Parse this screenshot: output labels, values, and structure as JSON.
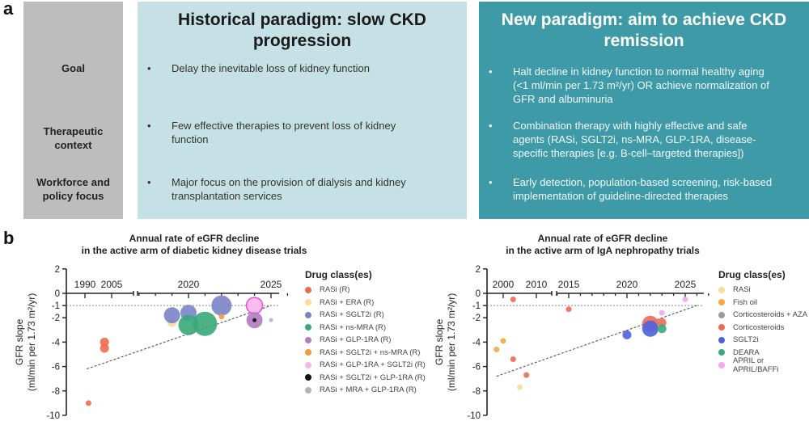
{
  "panel_a": {
    "letter": "a",
    "row_labels": {
      "goal": "Goal",
      "therapeutic_1": "Therapeutic",
      "therapeutic_2": "context",
      "workforce_1": "Workforce and",
      "workforce_2": "policy focus"
    },
    "historical": {
      "title_1": "Historical paradigm:  slow CKD",
      "title_2": "progression",
      "goal_1": "Delay the inevitable loss of kidney function",
      "therapeutic_1": "Few effective therapies to prevent loss of kidney",
      "therapeutic_2": "function",
      "workforce_1": "Major focus on the provision of dialysis and kidney",
      "workforce_2": "transplantation services"
    },
    "new": {
      "title_1": "New paradigm:  aim to achieve CKD",
      "title_2": "remission",
      "goal_1": "Halt decline in kidney function to normal healthy aging",
      "goal_2": "(<1 ml/min per 1.73 m²/yr) OR achieve normalization  of",
      "goal_3": "GFR and albuminuria",
      "therapeutic_1": "Combination therapy with highly effective and safe",
      "therapeutic_2": "agents (RASi, SGLT2i, ns-MRA, GLP-1RA, disease-",
      "therapeutic_3": "specific therapies [e.g. B-cell–targeted therapies])",
      "workforce_1": "Early detection, population-based screening, risk-based",
      "workforce_2": "implementation of guideline-directed therapies"
    },
    "bullet": "•"
  },
  "panel_b": {
    "letter": "b"
  },
  "chart_data": [
    {
      "type": "scatter",
      "title": "Annual rate of eGFR decline",
      "subtitle": "in the active arm of diabetic kidney disease trials",
      "xlabel": "",
      "ylabel_1": "GFR slope",
      "ylabel_2": "(ml/min per 1.73 m²/yr)",
      "ylim": [
        -10,
        2
      ],
      "yticks": [
        2,
        0,
        -1,
        -2,
        -4,
        -6,
        -8,
        -10
      ],
      "xtick_labels": [
        "1990",
        "2005",
        "2020",
        "2025"
      ],
      "x_axis_broken": true,
      "reference_line": -1,
      "legend_title": "Drug class(es)",
      "legend_placement": "right",
      "legend": [
        {
          "name": "RASi (R)",
          "color": "#ef6a4f"
        },
        {
          "name": "RASi + ERA (R)",
          "color": "#f8dc9a"
        },
        {
          "name": "RASi + SGLT2i (R)",
          "color": "#7b83c8"
        },
        {
          "name": "RASi + ns-MRA (R)",
          "color": "#3aa87a"
        },
        {
          "name": "RASi + GLP-1RA (R)",
          "color": "#b37bc0"
        },
        {
          "name": "RASi + SGLT2i + ns-MRA (R)",
          "color": "#f39a3c"
        },
        {
          "name": "RASi + GLP-1RA + SGLT2i (R)",
          "color": "#f7b6ea"
        },
        {
          "name": "RASi + SGLT2i + GLP-1RA (R)",
          "color": "#111111"
        },
        {
          "name": "RASi + MRA + GLP-1RA (R)",
          "color": "#b5b5b5"
        }
      ],
      "points": [
        {
          "year": 1992,
          "value": -9.0,
          "class": 0,
          "size": "small"
        },
        {
          "year": 2001,
          "value": -4.0,
          "class": 0,
          "size": "medium"
        },
        {
          "year": 2001,
          "value": -4.5,
          "class": 0,
          "size": "medium"
        },
        {
          "year": 2019,
          "value": -2.4,
          "class": 1,
          "size": "medium"
        },
        {
          "year": 2019,
          "value": -1.8,
          "class": 2,
          "size": "large"
        },
        {
          "year": 2020,
          "value": -1.6,
          "class": 2,
          "size": "large"
        },
        {
          "year": 2022,
          "value": -1.0,
          "class": 2,
          "size": "xlarge"
        },
        {
          "year": 2020,
          "value": -2.6,
          "class": 3,
          "size": "xlarge"
        },
        {
          "year": 2021,
          "value": -2.5,
          "class": 3,
          "size": "xxlarge"
        },
        {
          "year": 2022,
          "value": -1.9,
          "class": 5,
          "size": "small"
        },
        {
          "year": 2024,
          "value": -1.0,
          "class": 6,
          "size": "large",
          "outline": "#e84fd0"
        },
        {
          "year": 2024,
          "value": -2.2,
          "class": 4,
          "size": "large"
        },
        {
          "year": 2024,
          "value": -2.2,
          "class": 7,
          "size": "tiny"
        },
        {
          "year": 2025,
          "value": -2.2,
          "class": 8,
          "size": "tiny"
        }
      ],
      "trendline": {
        "from": {
          "year": 1991,
          "value": -6.2
        },
        "to": {
          "year": 2025,
          "value": -1.0
        }
      }
    },
    {
      "type": "scatter",
      "title": "Annual rate of eGFR decline",
      "subtitle": "in the active arm of IgA nephropathy trials",
      "xlabel": "",
      "ylabel_1": "GFR slope",
      "ylabel_2": "(ml/min per 1.73 m²/yr)",
      "ylim": [
        -10,
        2
      ],
      "yticks": [
        2,
        0,
        -1,
        -2,
        -4,
        -6,
        -8,
        -10
      ],
      "xtick_labels": [
        "2000",
        "2010",
        "2015",
        "2020",
        "2025"
      ],
      "x_axis_broken": true,
      "reference_line": -1,
      "legend_title": "Drug class(es)",
      "legend_placement": "right",
      "legend": [
        {
          "name": "RASi",
          "color": "#f8dc9a"
        },
        {
          "name": "Fish oil",
          "color": "#f3a93c"
        },
        {
          "name": "Corticosteroids + AZA",
          "color": "#9a9a9a"
        },
        {
          "name": "Corticosteroids",
          "color": "#ef6a4f"
        },
        {
          "name": "SGLT2i",
          "color": "#4a63e0"
        },
        {
          "name": "DEARA",
          "color": "#3aa87a"
        },
        {
          "name": "APRIL or APRIL/BAFFi",
          "color": "#f3a8f0"
        }
      ],
      "points": [
        {
          "year": 1998,
          "value": -4.6,
          "class": 1,
          "size": "small"
        },
        {
          "year": 2000,
          "value": -3.9,
          "class": 1,
          "size": "small"
        },
        {
          "year": 2003,
          "value": -0.5,
          "class": 3,
          "size": "small"
        },
        {
          "year": 2003,
          "value": -5.4,
          "class": 3,
          "size": "small"
        },
        {
          "year": 2005,
          "value": -7.7,
          "class": 0,
          "size": "small"
        },
        {
          "year": 2007,
          "value": -6.7,
          "class": 3,
          "size": "small"
        },
        {
          "year": 2015,
          "value": -1.3,
          "class": 3,
          "size": "small"
        },
        {
          "year": 2020,
          "value": -3.4,
          "class": 4,
          "size": "medium"
        },
        {
          "year": 2022,
          "value": -2.5,
          "class": 3,
          "size": "large"
        },
        {
          "year": 2022,
          "value": -2.9,
          "class": 4,
          "size": "large"
        },
        {
          "year": 2023,
          "value": -2.4,
          "class": 3,
          "size": "medium"
        },
        {
          "year": 2023,
          "value": -2.9,
          "class": 5,
          "size": "medium"
        },
        {
          "year": 2023,
          "value": -1.6,
          "class": 6,
          "size": "small"
        },
        {
          "year": 2025,
          "value": -0.5,
          "class": 6,
          "size": "small"
        }
      ],
      "trendline": {
        "from": {
          "year": 1998,
          "value": -6.8
        },
        "to": {
          "year": 2026,
          "value": -1.0
        }
      }
    }
  ]
}
